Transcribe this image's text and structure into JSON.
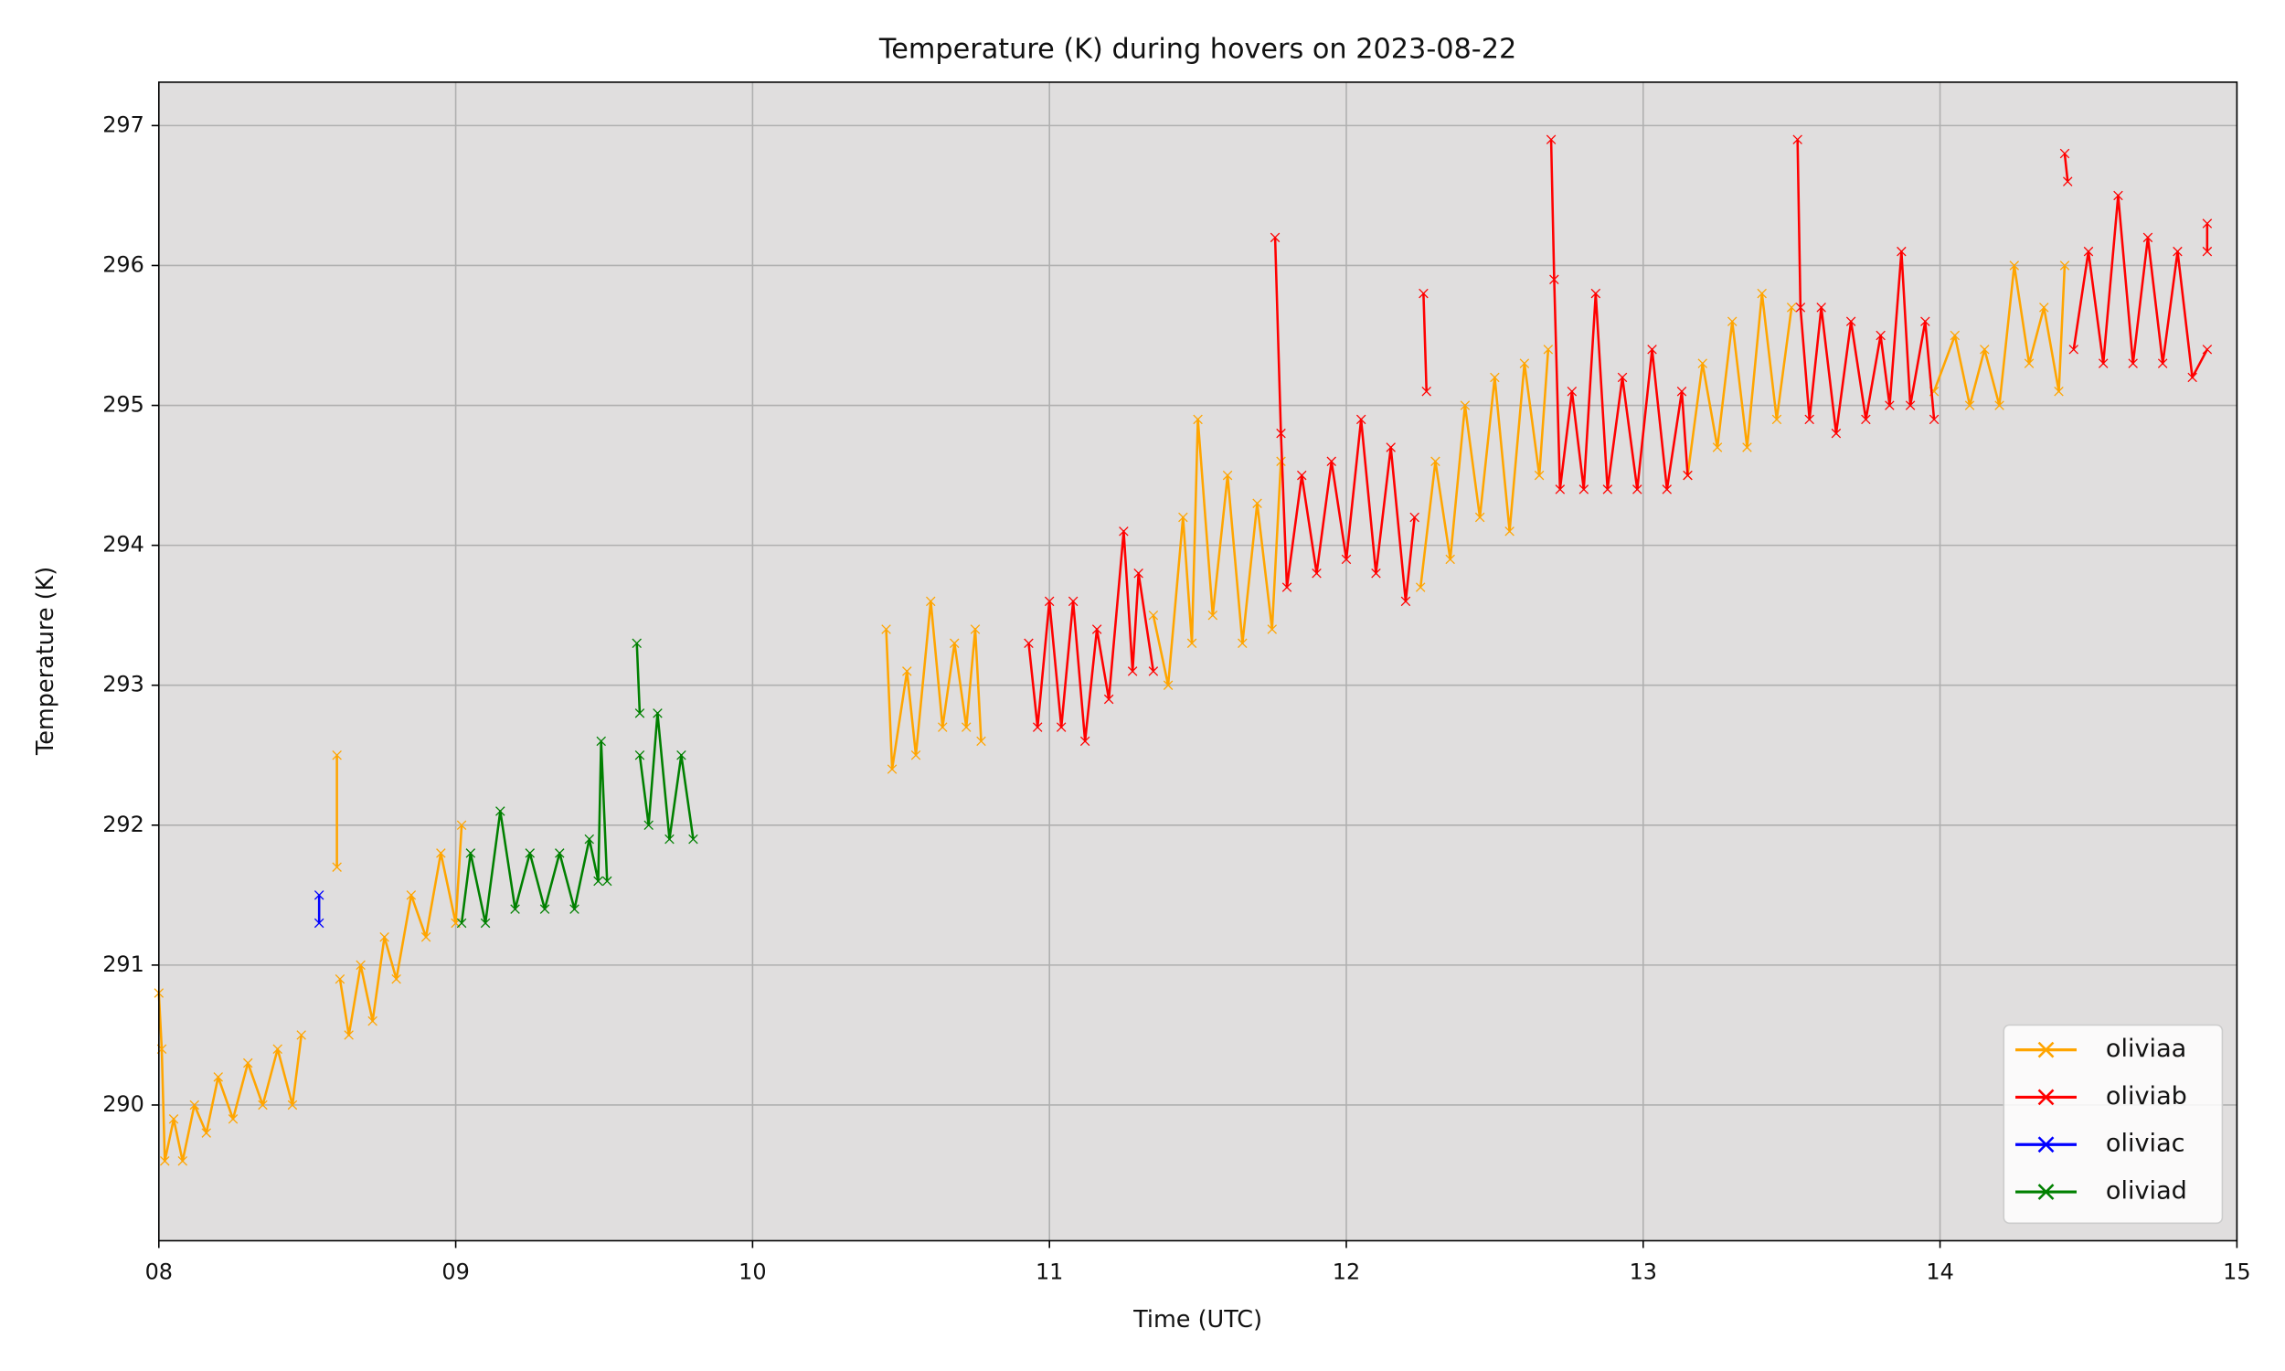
{
  "chart_data": {
    "type": "line",
    "marker": "x",
    "title": "Temperature (K) during hovers on 2023-08-22",
    "x_label": "Time (UTC)",
    "y_label": "Temperature (K)",
    "xlim": [
      8,
      15
    ],
    "ylim": [
      289.03,
      297.31
    ],
    "xticks": [
      {
        "value": 8,
        "label": "08"
      },
      {
        "value": 9,
        "label": "09"
      },
      10,
      11,
      12,
      13,
      14,
      15
    ],
    "yticks": [
      290,
      291,
      292,
      293,
      294,
      295,
      296,
      297
    ],
    "grid": true,
    "legend": "lower right",
    "background": "#e0dede",
    "series": [
      {
        "name": "oliviaa",
        "color": "#ffa500",
        "x": [
          8.0,
          8.01,
          8.02,
          8.05,
          8.08,
          8.12,
          8.16,
          8.2,
          8.25,
          8.3,
          8.35,
          8.4,
          8.45,
          8.48,
          null,
          8.6,
          8.6,
          null,
          8.61,
          8.64,
          8.68,
          8.72,
          8.76,
          8.8,
          8.85,
          8.9,
          8.95,
          9.0,
          9.02,
          null,
          10.45,
          10.47,
          10.52,
          10.55,
          10.6,
          10.64,
          10.68,
          10.72,
          10.75,
          10.77,
          null,
          11.35,
          11.4,
          11.45,
          11.48,
          11.5,
          11.55,
          11.6,
          11.65,
          11.7,
          11.75,
          11.78,
          null,
          12.25,
          12.3,
          12.35,
          12.4,
          12.45,
          12.5,
          12.55,
          12.6,
          12.65,
          12.68,
          null,
          13.15,
          13.2,
          13.25,
          13.3,
          13.35,
          13.4,
          13.45,
          13.5,
          null,
          13.98,
          14.05,
          14.1,
          14.15,
          14.2,
          14.25,
          14.3,
          14.35,
          14.4,
          14.42
        ],
        "values": [
          290.8,
          290.4,
          289.6,
          289.9,
          289.6,
          290.0,
          289.8,
          290.2,
          289.9,
          290.3,
          290.0,
          290.4,
          290.0,
          290.5,
          null,
          292.5,
          291.7,
          null,
          290.9,
          290.5,
          291.0,
          290.6,
          291.2,
          290.9,
          291.5,
          291.2,
          291.8,
          291.3,
          292.0,
          null,
          293.4,
          292.4,
          293.1,
          292.5,
          293.6,
          292.7,
          293.3,
          292.7,
          293.4,
          292.6,
          null,
          293.5,
          293.0,
          294.2,
          293.3,
          294.9,
          293.5,
          294.5,
          293.3,
          294.3,
          293.4,
          294.6,
          null,
          293.7,
          294.6,
          293.9,
          295.0,
          294.2,
          295.2,
          294.1,
          295.3,
          294.5,
          295.4,
          null,
          294.5,
          295.3,
          294.7,
          295.6,
          294.7,
          295.8,
          294.9,
          295.7,
          null,
          295.1,
          295.5,
          295.0,
          295.4,
          295.0,
          296.0,
          295.3,
          295.7,
          295.1,
          296.0
        ]
      },
      {
        "name": "oliviab",
        "color": "#ff0000",
        "x": [
          10.93,
          10.96,
          11.0,
          11.04,
          11.08,
          11.12,
          11.16,
          11.2,
          11.25,
          11.28,
          11.3,
          11.35,
          null,
          11.76,
          11.78,
          11.8,
          11.85,
          11.9,
          11.95,
          12.0,
          12.05,
          12.1,
          12.15,
          12.2,
          12.23,
          null,
          12.26,
          12.27,
          null,
          12.69,
          12.7,
          12.72,
          12.76,
          12.8,
          12.84,
          12.88,
          12.93,
          12.98,
          13.03,
          13.08,
          13.13,
          13.15,
          null,
          13.52,
          13.53,
          13.56,
          13.6,
          13.65,
          13.7,
          13.75,
          13.8,
          13.83,
          13.87,
          13.9,
          13.95,
          13.98,
          null,
          14.42,
          14.43,
          null,
          14.45,
          14.5,
          14.55,
          14.6,
          14.65,
          14.7,
          14.75,
          14.8,
          14.85,
          14.9,
          null,
          14.9,
          14.9
        ],
        "values": [
          293.3,
          292.7,
          293.6,
          292.7,
          293.6,
          292.6,
          293.4,
          292.9,
          294.1,
          293.1,
          293.8,
          293.1,
          null,
          296.2,
          294.8,
          293.7,
          294.5,
          293.8,
          294.6,
          293.9,
          294.9,
          293.8,
          294.7,
          293.6,
          294.2,
          null,
          295.8,
          295.1,
          null,
          296.9,
          295.9,
          294.4,
          295.1,
          294.4,
          295.8,
          294.4,
          295.2,
          294.4,
          295.4,
          294.4,
          295.1,
          294.5,
          null,
          296.9,
          295.7,
          294.9,
          295.7,
          294.8,
          295.6,
          294.9,
          295.5,
          295.0,
          296.1,
          295.0,
          295.6,
          294.9,
          null,
          296.8,
          296.6,
          null,
          295.4,
          296.1,
          295.3,
          296.5,
          295.3,
          296.2,
          295.3,
          296.1,
          295.2,
          295.4,
          null,
          296.3,
          296.1
        ]
      },
      {
        "name": "oliviac",
        "color": "#0000ff",
        "x": [
          8.54,
          8.54
        ],
        "values": [
          291.5,
          291.3
        ]
      },
      {
        "name": "oliviad",
        "color": "#008000",
        "x": [
          9.02,
          9.05,
          9.1,
          9.15,
          9.2,
          9.25,
          9.3,
          9.35,
          9.4,
          9.45,
          9.48,
          9.49,
          9.51,
          null,
          9.61,
          9.62,
          null,
          9.62,
          9.65,
          9.68,
          9.72,
          9.76,
          9.8
        ],
        "values": [
          291.3,
          291.8,
          291.3,
          292.1,
          291.4,
          291.8,
          291.4,
          291.8,
          291.4,
          291.9,
          291.6,
          292.6,
          291.6,
          null,
          293.3,
          292.8,
          null,
          292.5,
          292.0,
          292.8,
          291.9,
          292.5,
          291.9
        ]
      }
    ]
  }
}
